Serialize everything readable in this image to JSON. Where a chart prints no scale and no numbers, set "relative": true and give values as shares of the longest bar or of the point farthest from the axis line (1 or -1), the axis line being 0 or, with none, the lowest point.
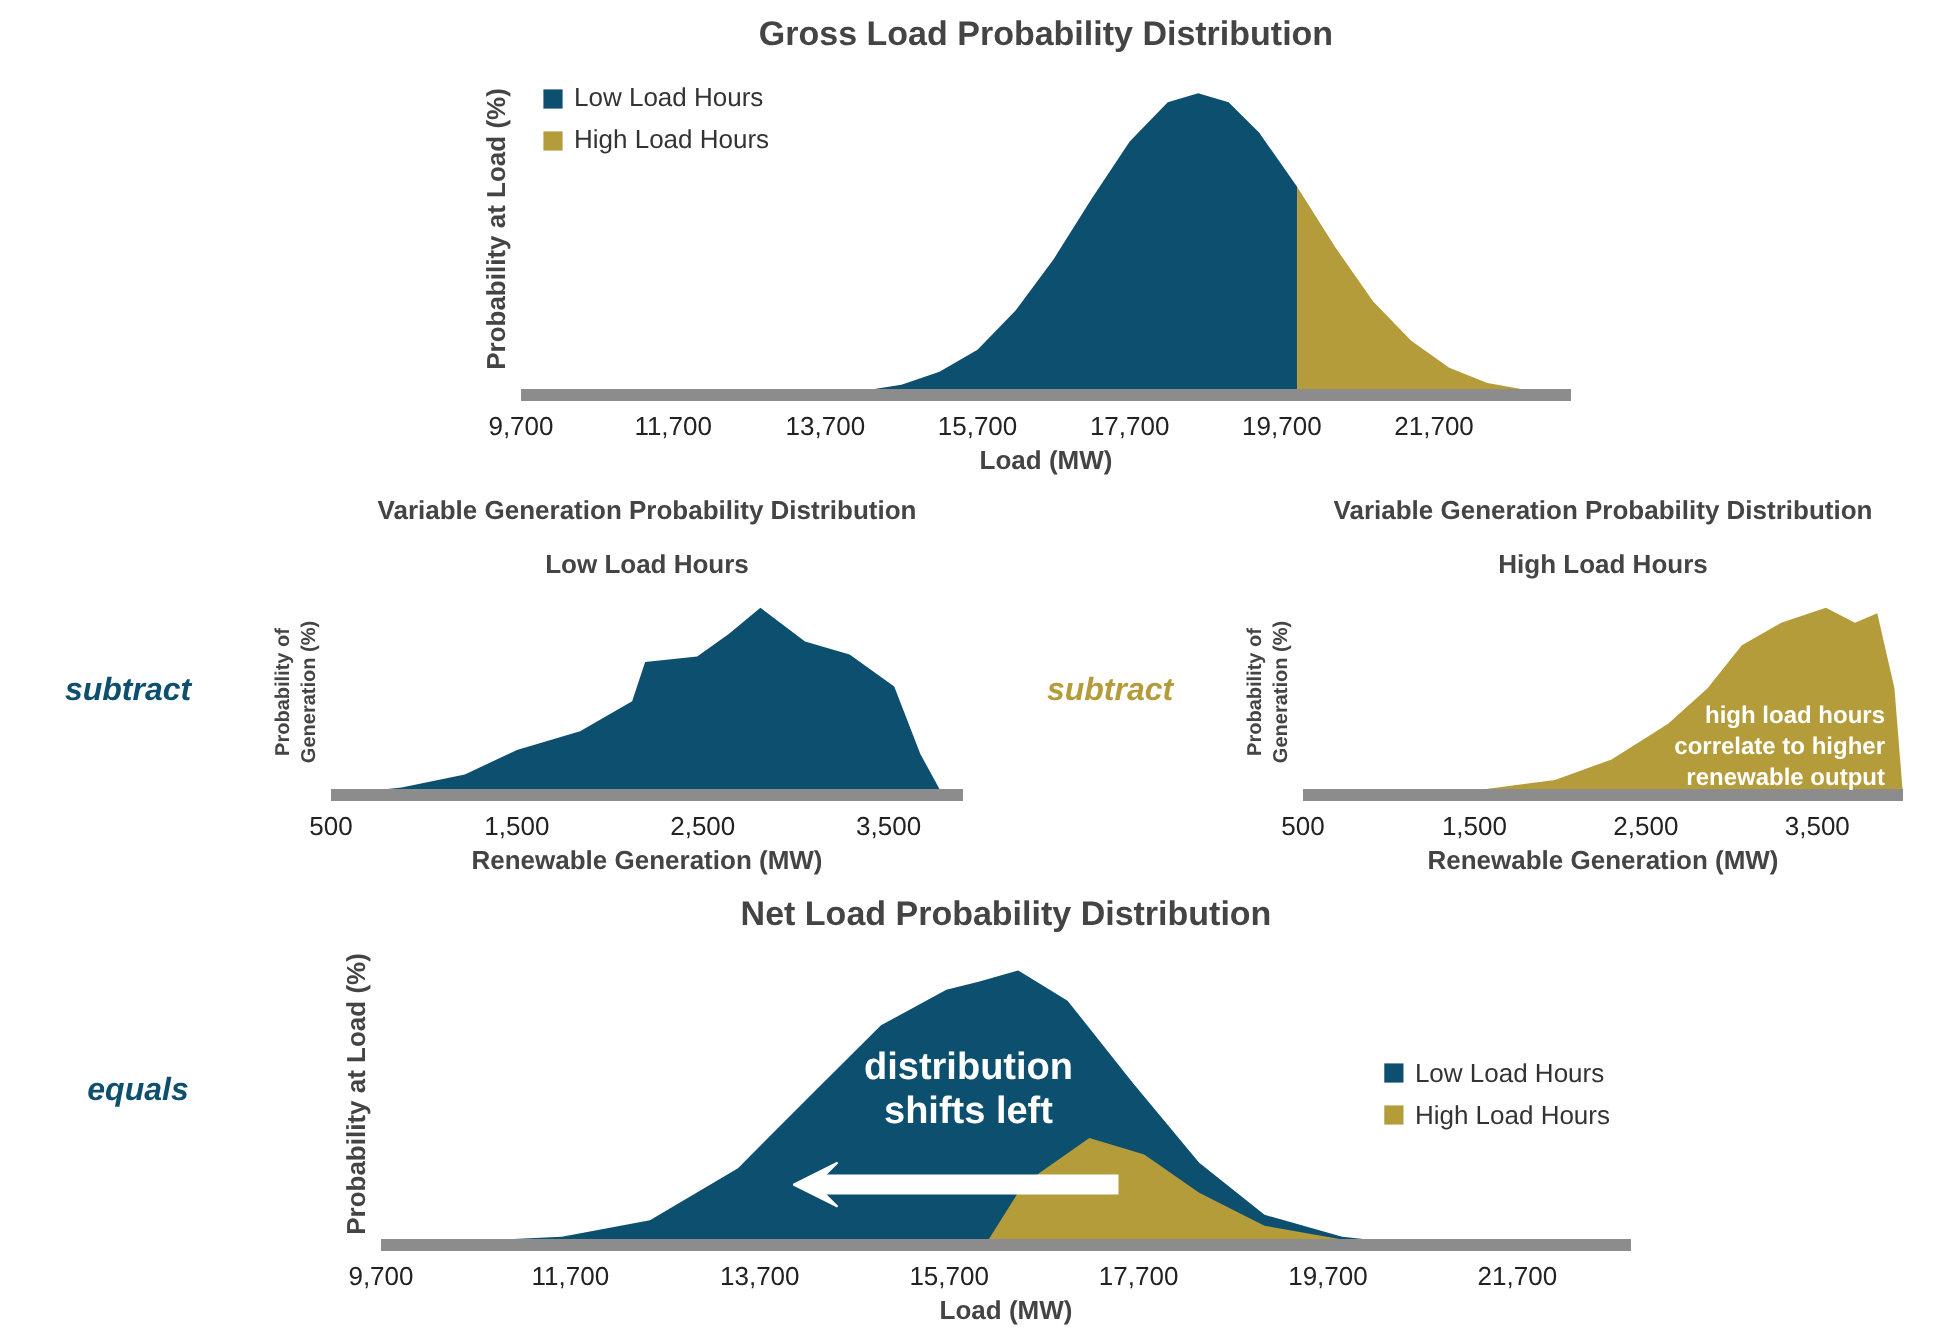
{
  "chart_data": [
    {
      "type": "area",
      "title": "Gross Load Probability Distribution",
      "xlabel": "Load (MW)",
      "ylabel": "Probability at Load (%)",
      "relative": true,
      "tick_labels": "x",
      "legend": "top left",
      "xlim": [
        9700,
        23500
      ],
      "xticks": [
        {
          "value": 9700,
          "label": "9,700"
        },
        {
          "value": 11700,
          "label": "11,700"
        },
        {
          "value": 13700,
          "label": "13,700"
        },
        {
          "value": 15700,
          "label": "15,700"
        },
        {
          "value": 17700,
          "label": "17,700"
        },
        {
          "value": 19700,
          "label": "19,700"
        },
        {
          "value": 21700,
          "label": "21,700"
        }
      ],
      "series": [
        {
          "name": "Low Load Hours",
          "color": "#0d4f6e",
          "x": [
            13700,
            14200,
            14700,
            15200,
            15700,
            16200,
            16700,
            17200,
            17700,
            18200,
            18600,
            19000,
            19400,
            19900
          ],
          "values": [
            0.005,
            0.014,
            0.034,
            0.077,
            0.15,
            0.28,
            0.45,
            0.65,
            0.84,
            0.97,
            1,
            0.97,
            0.87,
            0.69
          ]
        },
        {
          "name": "High Load Hours",
          "color": "#b59c3b",
          "x": [
            19900,
            20400,
            20900,
            21400,
            21900,
            22400,
            22900,
            23400
          ],
          "values": [
            0.69,
            0.49,
            0.31,
            0.18,
            0.09,
            0.04,
            0.017,
            0.005
          ]
        }
      ]
    },
    {
      "type": "area",
      "title": "Variable Generation Probability Distribution",
      "subtitle": "Low Load Hours",
      "xlabel": "Renewable Generation (MW)",
      "ylabel": "Probability of\nGeneration (%)",
      "relative": true,
      "tick_labels": "x",
      "annotations": [
        "subtract"
      ],
      "xlim": [
        500,
        3900
      ],
      "xticks": [
        {
          "value": 500,
          "label": "500"
        },
        {
          "value": 1500,
          "label": "1,500"
        },
        {
          "value": 2500,
          "label": "2,500"
        },
        {
          "value": 3500,
          "label": "3,500"
        }
      ],
      "series": [
        {
          "color": "#0d4f6e",
          "x": [
            500,
            880,
            1220,
            1500,
            1840,
            2120,
            2190,
            2470,
            2640,
            2810,
            3050,
            3290,
            3530,
            3670,
            3780,
            3880
          ],
          "values": [
            0,
            0.04,
            0.11,
            0.24,
            0.34,
            0.5,
            0.71,
            0.74,
            0.86,
            1,
            0.82,
            0.75,
            0.58,
            0.22,
            0.02,
            0
          ]
        }
      ]
    },
    {
      "type": "area",
      "title": "Variable Generation Probability Distribution",
      "subtitle": "High Load Hours",
      "xlabel": "Renewable Generation (MW)",
      "ylabel": "Probability of\nGeneration (%)",
      "relative": true,
      "tick_labels": "x",
      "annotations": [
        "subtract",
        "high load hours correlate to higher renewable output"
      ],
      "xlim": [
        500,
        4000
      ],
      "xticks": [
        {
          "value": 500,
          "label": "500"
        },
        {
          "value": 1500,
          "label": "1,500"
        },
        {
          "value": 2500,
          "label": "2,500"
        },
        {
          "value": 3500,
          "label": "3,500"
        }
      ],
      "series": [
        {
          "color": "#b59c3b",
          "x": [
            500,
            1470,
            1970,
            2300,
            2630,
            2860,
            3060,
            3290,
            3550,
            3720,
            3850,
            3950,
            4000
          ],
          "values": [
            0,
            0.02,
            0.08,
            0.19,
            0.38,
            0.57,
            0.8,
            0.92,
            1,
            0.92,
            0.97,
            0.57,
            0
          ]
        }
      ]
    },
    {
      "type": "area",
      "title": "Net Load Probability Distribution",
      "xlabel": "Load (MW)",
      "ylabel": "Probability at Load (%)",
      "relative": true,
      "tick_labels": "x",
      "legend": "right",
      "annotations": [
        "equals",
        "distribution shifts left"
      ],
      "xlim": [
        9700,
        22900
      ],
      "xticks": [
        {
          "value": 9700,
          "label": "9,700"
        },
        {
          "value": 11700,
          "label": "11,700"
        },
        {
          "value": 13700,
          "label": "13,700"
        },
        {
          "value": 15700,
          "label": "15,700"
        },
        {
          "value": 17700,
          "label": "17,700"
        },
        {
          "value": 19700,
          "label": "19,700"
        },
        {
          "value": 21700,
          "label": "21,700"
        }
      ],
      "series": [
        {
          "name": "Low Load Hours",
          "color": "#0d4f6e",
          "x": [
            9700,
            11610,
            12540,
            13470,
            14280,
            14980,
            15670,
            16020,
            16430,
            16950,
            17640,
            18340,
            19030,
            19850,
            20660
          ],
          "values": [
            0,
            0.03,
            0.09,
            0.28,
            0.56,
            0.8,
            0.93,
            0.96,
            1,
            0.89,
            0.59,
            0.3,
            0.11,
            0.03,
            0
          ]
        },
        {
          "name": "High Load Hours",
          "color": "#b59c3b",
          "x": [
            16080,
            16480,
            17180,
            17760,
            18340,
            19030,
            19850,
            20190
          ],
          "values": [
            0,
            0.22,
            0.39,
            0.33,
            0.19,
            0.07,
            0.02,
            0
          ]
        }
      ]
    }
  ]
}
